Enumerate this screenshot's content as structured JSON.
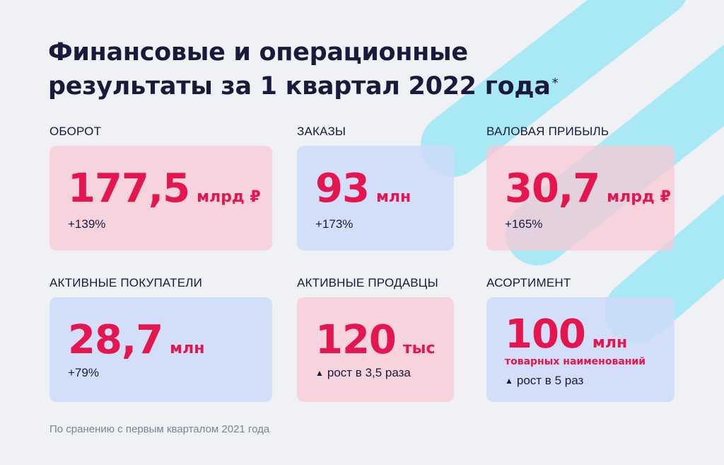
{
  "title": {
    "line1": "Финансовые и операционные",
    "line2": "результаты за 1 квартал 2022 года",
    "marker": "*"
  },
  "metrics": [
    {
      "label": "ОБОРОТ",
      "value": "177,5",
      "unit": "млрд ₽",
      "change": "+139%"
    },
    {
      "label": "ЗАКАЗЫ",
      "value": "93",
      "unit": "млн",
      "change": "+173%"
    },
    {
      "label": "ВАЛОВАЯ ПРИБЫЛЬ",
      "value": "30,7",
      "unit": "млрд ₽",
      "change": "+165%"
    },
    {
      "label": "АКТИВНЫЕ ПОКУПАТЕЛИ",
      "value": "28,7",
      "unit": "млн",
      "change": "+79%"
    },
    {
      "label": "АКТИВНЫЕ ПРОДАВЦЫ",
      "value": "120",
      "unit": "тыс",
      "change": "рост в 3,5 раза"
    },
    {
      "label": "АСОРТИМЕНТ",
      "value": "100",
      "unit": "млн",
      "unit_sub": "товарных наименований",
      "change": "рост в 5 раз"
    }
  ],
  "footnote": "По сранению с первым кварталом 2021 года",
  "colors": {
    "background": "#eff1f5",
    "accent": "#e5164f",
    "text": "#1a1b3a",
    "card_pink": "#fac8d6",
    "card_blue": "#cedbf8",
    "decor_cyan": "#a9e9f5"
  }
}
